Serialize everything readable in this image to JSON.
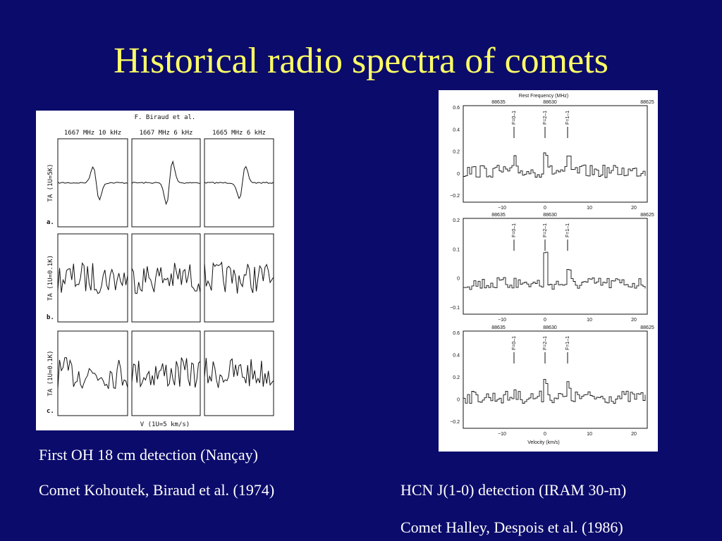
{
  "title": "Historical radio spectra of comets",
  "left_figure": {
    "header": "F. Biraud et al.",
    "columns": [
      "1667 MHz    10 kHz",
      "1667 MHz     6 kHz",
      "1665 MHz     6 kHz"
    ],
    "row_labels": [
      "a.",
      "b.",
      "c."
    ],
    "axis_labels": [
      "TA (1U=5K)",
      "TA (1U=0.1K)",
      "TA (1U=0.1K)"
    ],
    "x_label": "V (1U=5 km/s)"
  },
  "right_figure": {
    "top_label": "Rest Frequency (MHz)",
    "freq_ticks": [
      "88635",
      "88630",
      "88625"
    ],
    "line_labels": [
      "F=0–1",
      "F=2–1",
      "F=1–1"
    ],
    "panels": [
      {
        "y_ticks": [
          "0.6",
          "0.4",
          "0.2",
          "0",
          "−0.2"
        ]
      },
      {
        "y_ticks": [
          "0.2",
          "0.1",
          "0",
          "−0.1"
        ]
      },
      {
        "y_ticks": [
          "0.6",
          "0.4",
          "0.2",
          "0",
          "−0.2"
        ]
      }
    ],
    "x_ticks": [
      "−10",
      "0",
      "10",
      "20"
    ],
    "x_label": "Velocity (km/s)"
  },
  "captions": {
    "left": [
      "First OH 18 cm detection (Nançay)",
      "Comet Kohoutek, Biraud et al. (1974)"
    ],
    "right": [
      "HCN J(1-0) detection (IRAM 30-m)",
      "Comet Halley, Despois et al. (1986)"
    ]
  }
}
